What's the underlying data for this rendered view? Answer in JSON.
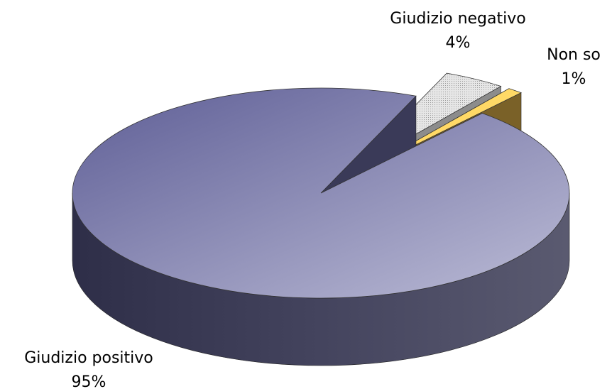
{
  "chart_data": {
    "type": "pie",
    "categories": [
      "Giudizio positivo",
      "Giudizio negativo",
      "Non so"
    ],
    "values": [
      95,
      4,
      1
    ],
    "value_labels": [
      "95%",
      "4%",
      "1%"
    ],
    "colors": [
      "#8a8ab4",
      "#d9d9d9",
      "#ffd966"
    ]
  }
}
